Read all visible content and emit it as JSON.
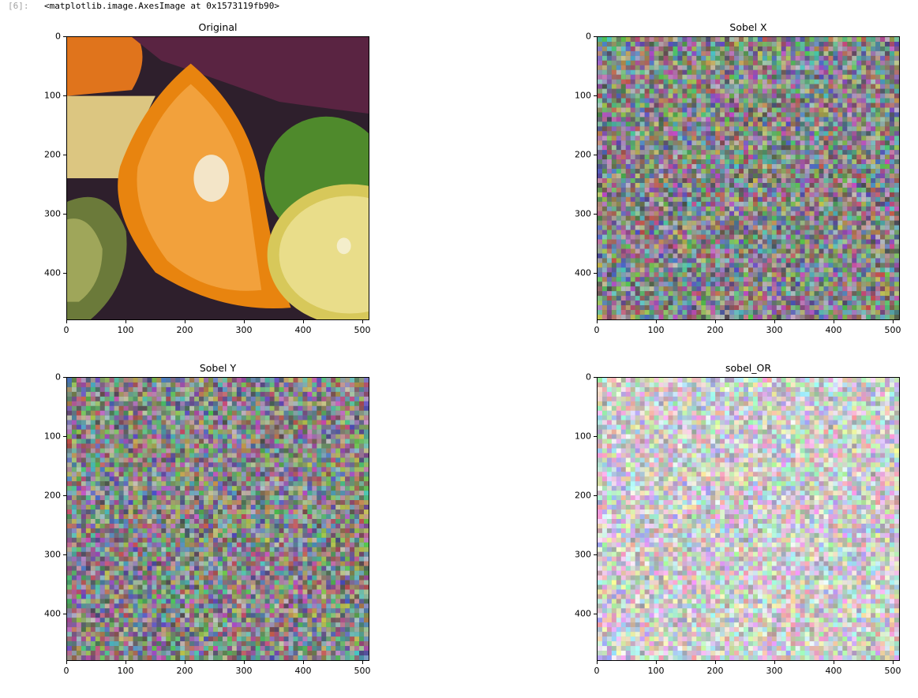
{
  "cell": {
    "prompt": "[6]:",
    "output_repr": "<matplotlib.image.AxesImage at 0x1573119fb90>"
  },
  "chart_data": [
    {
      "type": "image",
      "title": "Original",
      "x_ticks": [
        "0",
        "100",
        "200",
        "300",
        "400",
        "500"
      ],
      "y_ticks": [
        "0",
        "100",
        "200",
        "300",
        "400"
      ],
      "xlim": [
        0,
        512
      ],
      "ylim": [
        480,
        0
      ],
      "content": "photo-fruits"
    },
    {
      "type": "image",
      "title": "Sobel X",
      "x_ticks": [
        "0",
        "100",
        "200",
        "300",
        "400",
        "500"
      ],
      "y_ticks": [
        "0",
        "100",
        "200",
        "300",
        "400"
      ],
      "xlim": [
        0,
        512
      ],
      "ylim": [
        480,
        0
      ],
      "content": "noise-dark"
    },
    {
      "type": "image",
      "title": "Sobel Y",
      "x_ticks": [
        "0",
        "100",
        "200",
        "300",
        "400",
        "500"
      ],
      "y_ticks": [
        "0",
        "100",
        "200",
        "300",
        "400"
      ],
      "xlim": [
        0,
        512
      ],
      "ylim": [
        480,
        0
      ],
      "content": "noise-dark"
    },
    {
      "type": "image",
      "title": "sobel_OR",
      "x_ticks": [
        "0",
        "100",
        "200",
        "300",
        "400",
        "500"
      ],
      "y_ticks": [
        "0",
        "100",
        "200",
        "300",
        "400"
      ],
      "xlim": [
        0,
        512
      ],
      "ylim": [
        480,
        0
      ],
      "content": "noise-light"
    }
  ]
}
